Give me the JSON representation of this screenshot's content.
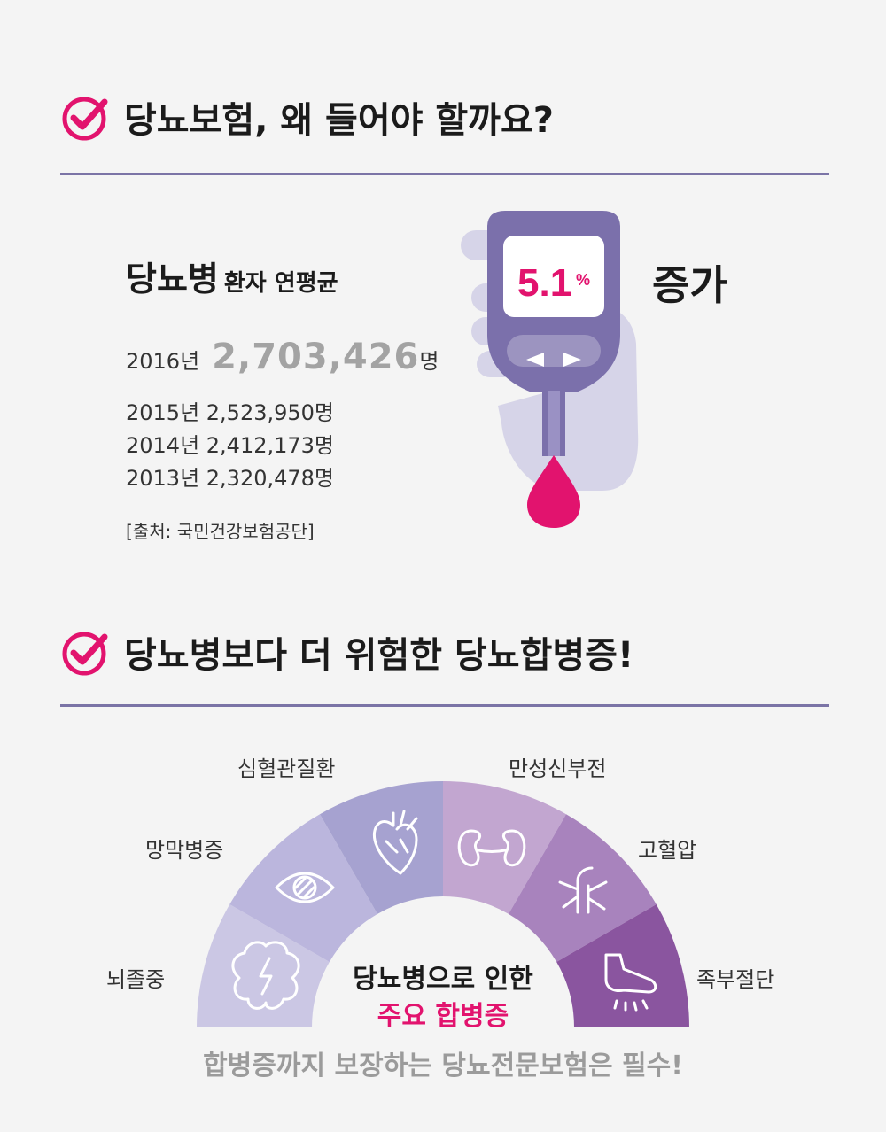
{
  "section1": {
    "title": "당뇨보험, 왜 들어야 할까요?"
  },
  "stats": {
    "heading_big": "당뇨병",
    "heading_small": "환자 연평균",
    "highlight": {
      "year": "2016년",
      "count": "2,703,426",
      "unit": "명"
    },
    "rows": [
      "2015년 2,523,950명",
      "2014년 2,412,173명",
      "2013년 2,320,478명"
    ],
    "source": "[출처: 국민건강보험공단]"
  },
  "meter": {
    "value": "5.1",
    "unit": "%",
    "increase_label": "증가"
  },
  "section2": {
    "title": "당뇨병보다 더 위험한 당뇨합병증!"
  },
  "complications": {
    "items": [
      "뇌졸중",
      "망막병증",
      "심혈관질환",
      "만성신부전",
      "고혈압",
      "족부절단"
    ],
    "segment_colors": [
      "#cbc7e4",
      "#bbb6dd",
      "#a6a2d0",
      "#c2a6d0",
      "#a883bd",
      "#8a559f"
    ],
    "center_line1": "당뇨병으로 인한",
    "center_line2": "주요 합병증"
  },
  "footer": "합병증까지 보장하는 당뇨전문보험은 필수!",
  "colors": {
    "accent": "#e2136e",
    "rule": "#7b74a6",
    "device": "#7b70ab"
  }
}
